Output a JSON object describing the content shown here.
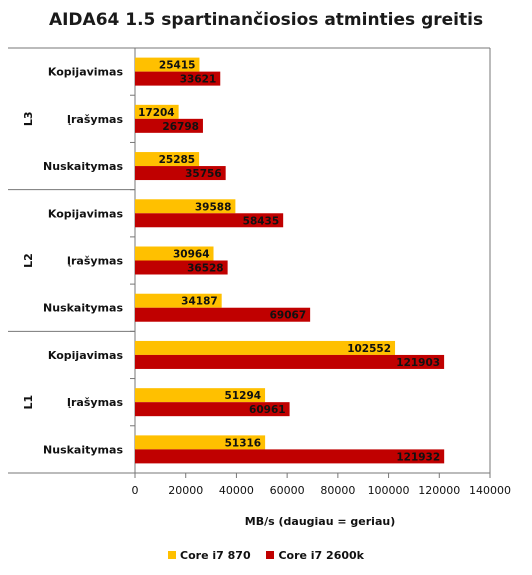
{
  "chart_data": {
    "type": "bar",
    "orientation": "horizontal",
    "title": "AIDA64 1.5 spartinančiosios atminties greitis",
    "xlabel": "MB/s (daugiau  = geriau)",
    "ylabel": "",
    "xlim": [
      0,
      140000
    ],
    "xticks": [
      0,
      20000,
      40000,
      60000,
      80000,
      100000,
      120000,
      140000
    ],
    "xtick_labels": [
      "0",
      "20000",
      "40000",
      "60000",
      "80000",
      "100000",
      "120000",
      "140000"
    ],
    "grid": false,
    "legend_position": "bottom",
    "groups": [
      "L3",
      "L2",
      "L1"
    ],
    "categories": [
      {
        "group": "L3",
        "label": "Kopijavimas"
      },
      {
        "group": "L3",
        "label": "Įrašymas"
      },
      {
        "group": "L3",
        "label": "Nuskaitymas"
      },
      {
        "group": "L2",
        "label": "Kopijavimas"
      },
      {
        "group": "L2",
        "label": "Įrašymas"
      },
      {
        "group": "L2",
        "label": "Nuskaitymas"
      },
      {
        "group": "L1",
        "label": "Kopijavimas"
      },
      {
        "group": "L1",
        "label": "Įrašymas"
      },
      {
        "group": "L1",
        "label": "Nuskaitymas"
      }
    ],
    "series": [
      {
        "name": "Core i7 870",
        "color": "#FFC000",
        "values": [
          25415,
          17204,
          25285,
          39588,
          30964,
          34187,
          102552,
          51294,
          51316
        ]
      },
      {
        "name": "Core i7 2600k",
        "color": "#C00000",
        "values": [
          33621,
          26798,
          35756,
          58435,
          36528,
          69067,
          121903,
          60961,
          121932
        ]
      }
    ]
  }
}
